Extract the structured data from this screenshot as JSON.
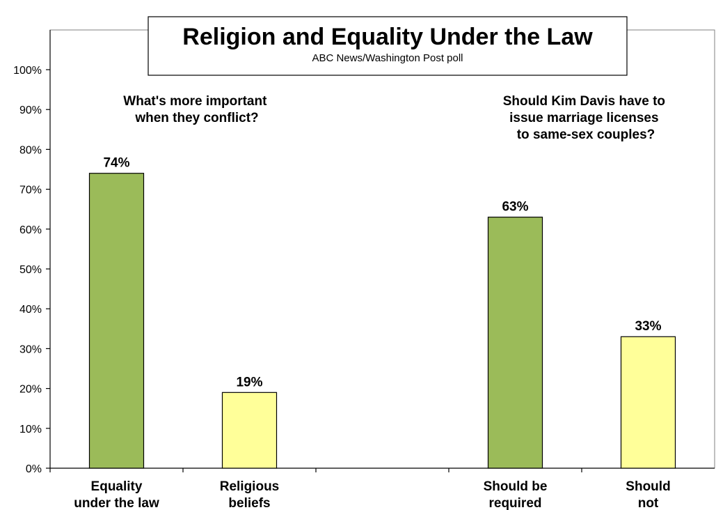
{
  "chart_data": {
    "type": "bar",
    "title": "Religion and Equality Under the Law",
    "subtitle": "ABC News/Washington  Post poll",
    "ylim": [
      0,
      100
    ],
    "yticks": [
      "0%",
      "10%",
      "20%",
      "30%",
      "40%",
      "50%",
      "60%",
      "70%",
      "80%",
      "90%",
      "100%"
    ],
    "grid": false,
    "categories": [
      [
        "Equality",
        "under the law"
      ],
      [
        "Religious",
        "beliefs"
      ],
      [
        "",
        ""
      ],
      [
        "Should be",
        "required"
      ],
      [
        "Should",
        "not"
      ]
    ],
    "values": [
      74,
      19,
      null,
      63,
      33
    ],
    "data_labels": [
      "74%",
      "19%",
      "",
      "63%",
      "33%"
    ],
    "bar_colors": [
      "#9bbb59",
      "#ffff99",
      null,
      "#9bbb59",
      "#ffff99"
    ],
    "questions": [
      {
        "lines": [
          "What's more important",
          "when they conflict?"
        ]
      },
      {
        "lines": [
          "Should Kim Davis have to",
          "issue marriage licenses",
          "to same-sex couples?"
        ]
      }
    ]
  }
}
